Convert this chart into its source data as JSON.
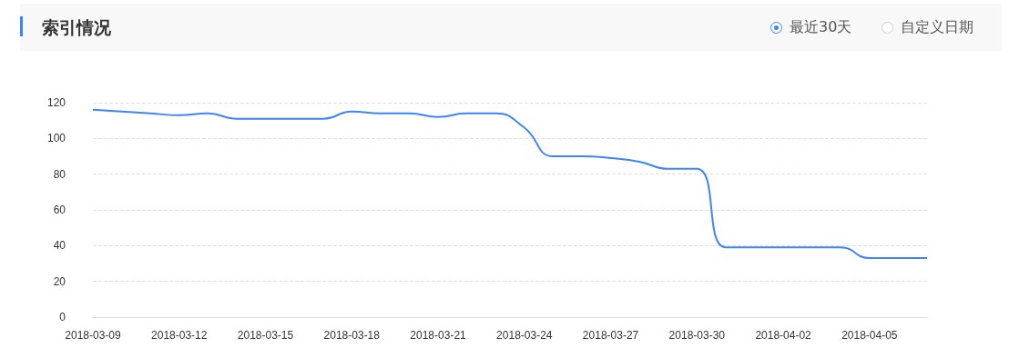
{
  "chart_data": {
    "type": "line",
    "title": "索引情况",
    "annotations": [
      "最近30天",
      "自定义日期"
    ],
    "categories": [
      "2018-03-09",
      null,
      null,
      "2018-03-12",
      null,
      null,
      "2018-03-15",
      null,
      null,
      "2018-03-18",
      null,
      null,
      "2018-03-21",
      null,
      null,
      "2018-03-24",
      null,
      null,
      "2018-03-27",
      null,
      null,
      "2018-03-30",
      null,
      null,
      "2018-04-02",
      null,
      null,
      "2018-04-05",
      null,
      null
    ],
    "series": [
      {
        "color": "#3d85f7",
        "values": [
          116,
          115,
          114,
          113,
          114,
          111,
          111,
          111,
          111,
          115,
          114,
          114,
          112,
          114,
          114,
          106,
          90,
          90,
          89,
          87,
          83,
          83,
          39,
          39,
          39,
          39,
          39,
          33,
          33,
          33
        ]
      }
    ],
    "ylim": [
      0,
      120
    ],
    "yticks": [
      0,
      20,
      40,
      60,
      80,
      100,
      120
    ],
    "grid": "y",
    "marker": "none",
    "line_style": "solid"
  }
}
